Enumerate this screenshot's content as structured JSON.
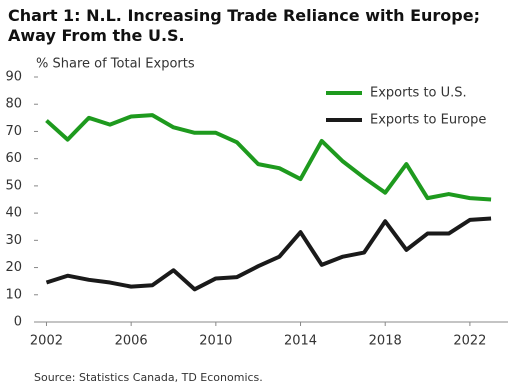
{
  "chart_data": {
    "type": "line",
    "title": "Chart 1: N.L. Increasing Trade Reliance with Europe; Away From the U.S.",
    "y_label": "% Share of Total Exports",
    "source": "Source: Statistics Canada, TD Economics.",
    "x": [
      2002,
      2003,
      2004,
      2005,
      2006,
      2007,
      2008,
      2009,
      2010,
      2011,
      2012,
      2013,
      2014,
      2015,
      2016,
      2017,
      2018,
      2019,
      2020,
      2021,
      2022,
      2023
    ],
    "series": [
      {
        "name": "Exports to U.S.",
        "color": "#1e9a1e",
        "values": [
          74,
          67,
          75,
          72.5,
          75.5,
          76,
          71.5,
          69.5,
          69.5,
          66,
          58,
          56.5,
          52.5,
          66.5,
          59,
          53,
          47.5,
          58,
          45.5,
          47,
          45.5,
          45
        ]
      },
      {
        "name": "Exports to Europe",
        "color": "#1a1a1a",
        "values": [
          14.5,
          17,
          15.5,
          14.5,
          13,
          13.5,
          19,
          12,
          16,
          16.5,
          20.5,
          24,
          33,
          21,
          24,
          25.5,
          37,
          26.5,
          32.5,
          32.5,
          37.5,
          38
        ]
      }
    ],
    "xlim": [
      2001.6,
      2023.8
    ],
    "xticks": [
      2002,
      2006,
      2010,
      2014,
      2018,
      2022
    ],
    "ylim": [
      0,
      90
    ],
    "yticks": [
      0,
      10,
      20,
      30,
      40,
      50,
      60,
      70,
      80,
      90
    ],
    "grid": false,
    "legend": "upper-right"
  }
}
